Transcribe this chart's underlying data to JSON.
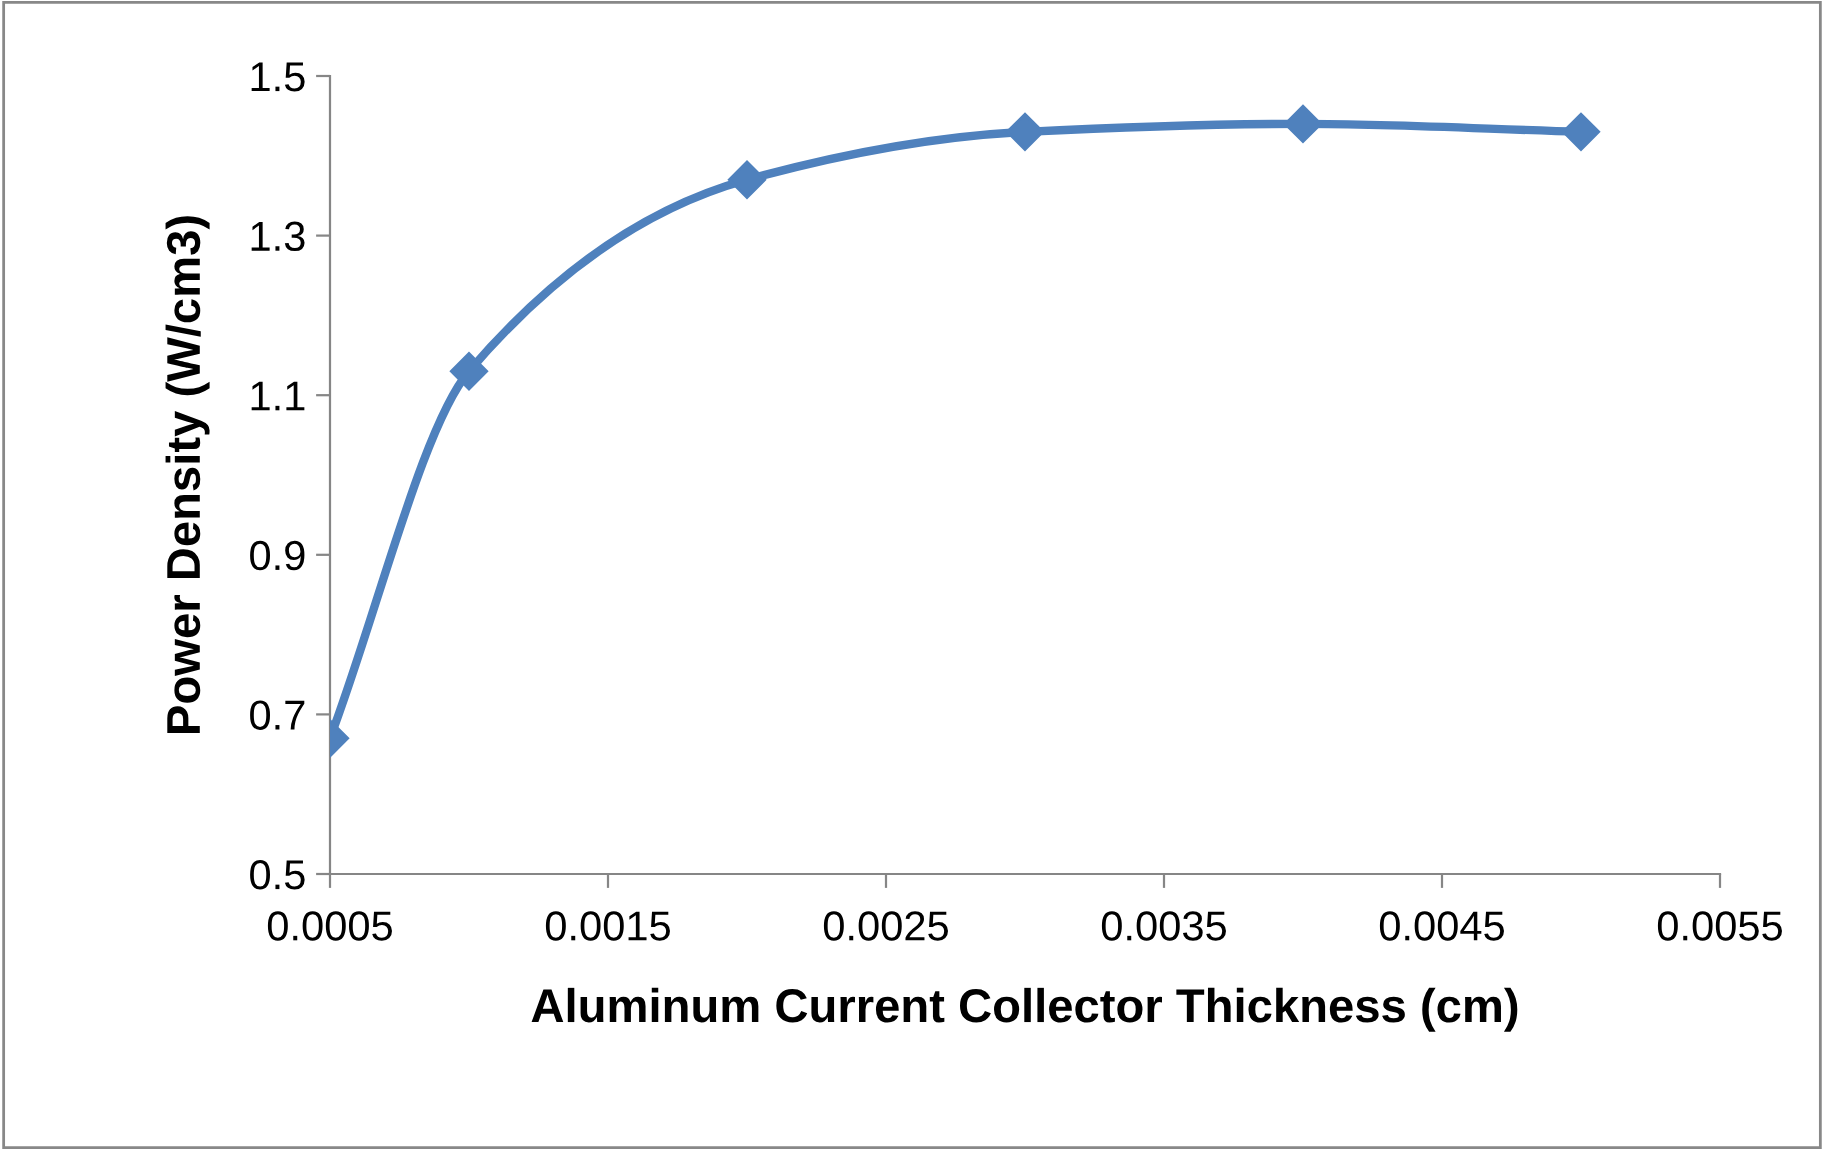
{
  "chart_data": {
    "type": "line",
    "xlabel": "Aluminum Current Collector Thickness (cm)",
    "ylabel": "Power Density (W/cm3)",
    "x": [
      0.0005,
      0.001,
      0.002,
      0.003,
      0.004,
      0.005
    ],
    "series": [
      {
        "color": "#4f81bd",
        "values": [
          0.67,
          1.13,
          1.37,
          1.43,
          1.44,
          1.43
        ]
      }
    ],
    "xlim": [
      0.0005,
      0.0055
    ],
    "xticks": [
      0.0005,
      0.0015,
      0.0025,
      0.0035,
      0.0045,
      0.0055
    ],
    "ylim": [
      0.5,
      1.5
    ],
    "yticks": [
      0.5,
      0.7,
      0.9,
      1.1,
      1.3,
      1.5
    ],
    "grid": false,
    "legend": false,
    "marker": "diamond",
    "line_style": "solid"
  }
}
